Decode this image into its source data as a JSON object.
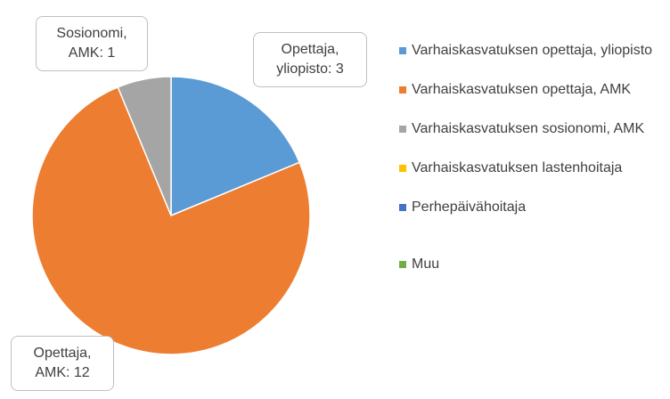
{
  "chart_data": {
    "type": "pie",
    "categories": [
      "Varhaiskasvatuksen opettaja, yliopisto",
      "Varhaiskasvatuksen opettaja, AMK",
      "Varhaiskasvatuksen sosionomi, AMK",
      "Varhaiskasvatuksen lastenhoitaja",
      "Perhepäivähoitaja",
      "Muu"
    ],
    "values": [
      3,
      12,
      1,
      0,
      0,
      0
    ],
    "value_labels": [
      "Opettaja, yliopisto: 3",
      "Opettaja, AMK: 12",
      "Sosionomi, AMK: 1",
      null,
      null,
      null
    ],
    "colors": [
      "#5b9bd5",
      "#ed7d31",
      "#a5a5a5",
      "#ffc000",
      "#4472c4",
      "#70ad47"
    ],
    "legend": "right"
  }
}
